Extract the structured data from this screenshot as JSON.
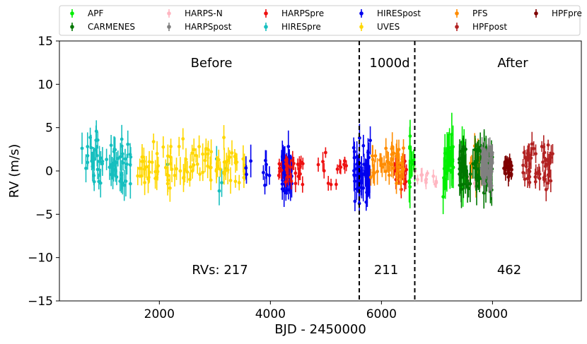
{
  "chart_data": {
    "type": "scatter",
    "xlabel": "BJD - 2450000",
    "ylabel": "RV (m/s)",
    "xlim": [
      200,
      9600
    ],
    "ylim": [
      -15,
      15
    ],
    "xticks": [
      2000,
      4000,
      6000,
      8000
    ],
    "xtick_labels": [
      "2000",
      "4000",
      "6000",
      "8000"
    ],
    "yticks": [
      -15,
      -10,
      -5,
      0,
      5,
      10,
      15
    ],
    "ytick_labels": [
      "−15",
      "−10",
      "−5",
      "0",
      "5",
      "10",
      "15"
    ],
    "vlines": [
      5600,
      6600
    ],
    "annotations": {
      "before": "Before",
      "window": "1000d",
      "after": "After",
      "count_before": "RVs: 217",
      "count_window": "211",
      "count_after": "462"
    },
    "legend": [
      "APF",
      "CARMENES",
      "HARPS-N",
      "HARPSpost",
      "HARPSpre",
      "HIRESpre",
      "HIRESpost",
      "UVES",
      "PFS",
      "HPFpost",
      "HPFpre"
    ],
    "series": [
      {
        "name": "HIRESpre",
        "color": "#17bfbf",
        "ranges": [
          [
            600,
            1500,
            60
          ],
          [
            2150,
            2150,
            1
          ],
          [
            3000,
            3300,
            4
          ]
        ],
        "center": 1.0,
        "spread": 2.6,
        "err": 1.3
      },
      {
        "name": "UVES",
        "color": "#ffd700",
        "ranges": [
          [
            1600,
            3600,
            90
          ]
        ],
        "center": 0.6,
        "spread": 2.4,
        "err": 1.2
      },
      {
        "name": "HIRESpost",
        "color": "#0000ee",
        "ranges": [
          [
            3550,
            3650,
            3
          ],
          [
            3800,
            4000,
            6
          ],
          [
            4200,
            4400,
            40
          ],
          [
            5500,
            5800,
            60
          ]
        ],
        "center": 0.0,
        "spread": 2.6,
        "err": 1.4
      },
      {
        "name": "HARPSpre",
        "color": "#ee1111",
        "ranges": [
          [
            4150,
            4600,
            30
          ],
          [
            4800,
            5500,
            14
          ],
          [
            6200,
            6450,
            25
          ]
        ],
        "center": 0.0,
        "spread": 1.8,
        "err": 0.8
      },
      {
        "name": "PFS",
        "color": "#ff8c00",
        "ranges": [
          [
            5800,
            6400,
            40
          ],
          [
            7600,
            7800,
            12
          ]
        ],
        "center": 0.8,
        "spread": 2.0,
        "err": 1.2
      },
      {
        "name": "APF",
        "color": "#00ee00",
        "ranges": [
          [
            6500,
            6600,
            10
          ],
          [
            7100,
            7300,
            25
          ],
          [
            7450,
            7500,
            10
          ]
        ],
        "center": 0.5,
        "spread": 3.2,
        "err": 1.8
      },
      {
        "name": "HARPS-N",
        "color": "#ffb6c1",
        "ranges": [
          [
            6600,
            7000,
            12
          ],
          [
            7500,
            7800,
            10
          ]
        ],
        "center": -1.0,
        "spread": 1.2,
        "err": 0.6
      },
      {
        "name": "CARMENES",
        "color": "#007700",
        "ranges": [
          [
            7400,
            8000,
            90
          ]
        ],
        "center": 0.3,
        "spread": 2.8,
        "err": 1.6
      },
      {
        "name": "HARPSpost",
        "color": "#808080",
        "ranges": [
          [
            7800,
            8000,
            60
          ]
        ],
        "center": 0.5,
        "spread": 1.8,
        "err": 1.0
      },
      {
        "name": "HPFpre",
        "color": "#7f0000",
        "ranges": [
          [
            8200,
            8350,
            25
          ]
        ],
        "center": 0.3,
        "spread": 1.2,
        "err": 0.8
      },
      {
        "name": "HPFpost",
        "color": "#b22222",
        "ranges": [
          [
            8550,
            9100,
            50
          ]
        ],
        "center": 0.6,
        "spread": 2.0,
        "err": 1.0
      }
    ]
  }
}
